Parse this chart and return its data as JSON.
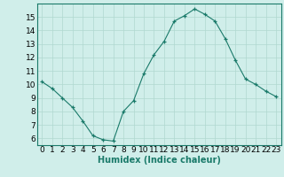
{
  "x": [
    0,
    1,
    2,
    3,
    4,
    5,
    6,
    7,
    8,
    9,
    10,
    11,
    12,
    13,
    14,
    15,
    16,
    17,
    18,
    19,
    20,
    21,
    22,
    23
  ],
  "y": [
    10.2,
    9.7,
    9.0,
    8.3,
    7.3,
    6.2,
    5.9,
    5.8,
    8.0,
    8.8,
    10.8,
    12.2,
    13.2,
    14.7,
    15.1,
    15.6,
    15.2,
    14.7,
    13.4,
    11.8,
    10.4,
    10.0,
    9.5,
    9.1
  ],
  "line_color": "#1a7a6a",
  "marker": "+",
  "marker_color": "#1a7a6a",
  "bg_color": "#d0eeea",
  "grid_color": "#b0d8d0",
  "xlabel": "Humidex (Indice chaleur)",
  "xlabel_fontsize": 7,
  "tick_fontsize": 6.5,
  "ylim": [
    5.5,
    16.0
  ],
  "xlim": [
    -0.5,
    23.5
  ],
  "yticks": [
    6,
    7,
    8,
    9,
    10,
    11,
    12,
    13,
    14,
    15
  ],
  "xticks": [
    0,
    1,
    2,
    3,
    4,
    5,
    6,
    7,
    8,
    9,
    10,
    11,
    12,
    13,
    14,
    15,
    16,
    17,
    18,
    19,
    20,
    21,
    22,
    23
  ]
}
